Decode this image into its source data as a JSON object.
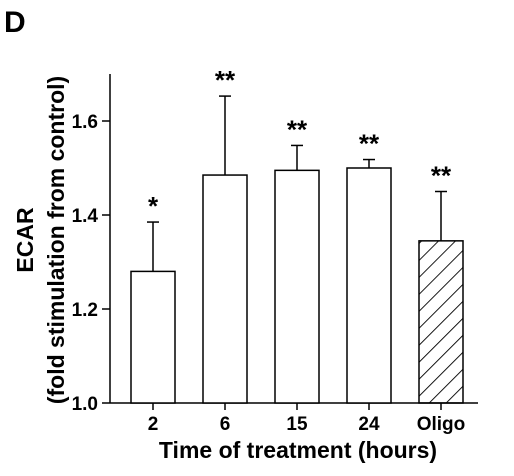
{
  "panel_label": "D",
  "chart_data": {
    "type": "bar",
    "categories": [
      "2",
      "6",
      "15",
      "24",
      "Oligo"
    ],
    "values": [
      1.28,
      1.485,
      1.495,
      1.5,
      1.345
    ],
    "error_upper": [
      1.385,
      1.653,
      1.548,
      1.518,
      1.45
    ],
    "significance": [
      "*",
      "**",
      "**",
      "**",
      "**"
    ],
    "fill": [
      "white",
      "white",
      "white",
      "white",
      "hatched"
    ],
    "xlabel": "Time of treatment (hours)",
    "ylabel_line1": "ECAR",
    "ylabel_line2": "(fold stimulation from control)",
    "ylim": [
      1.0,
      1.7
    ],
    "yticks": [
      1.0,
      1.2,
      1.4,
      1.6
    ],
    "ytick_labels": [
      "1.0",
      "1.2",
      "1.4",
      "1.6"
    ],
    "grid": false,
    "legend": "none"
  }
}
